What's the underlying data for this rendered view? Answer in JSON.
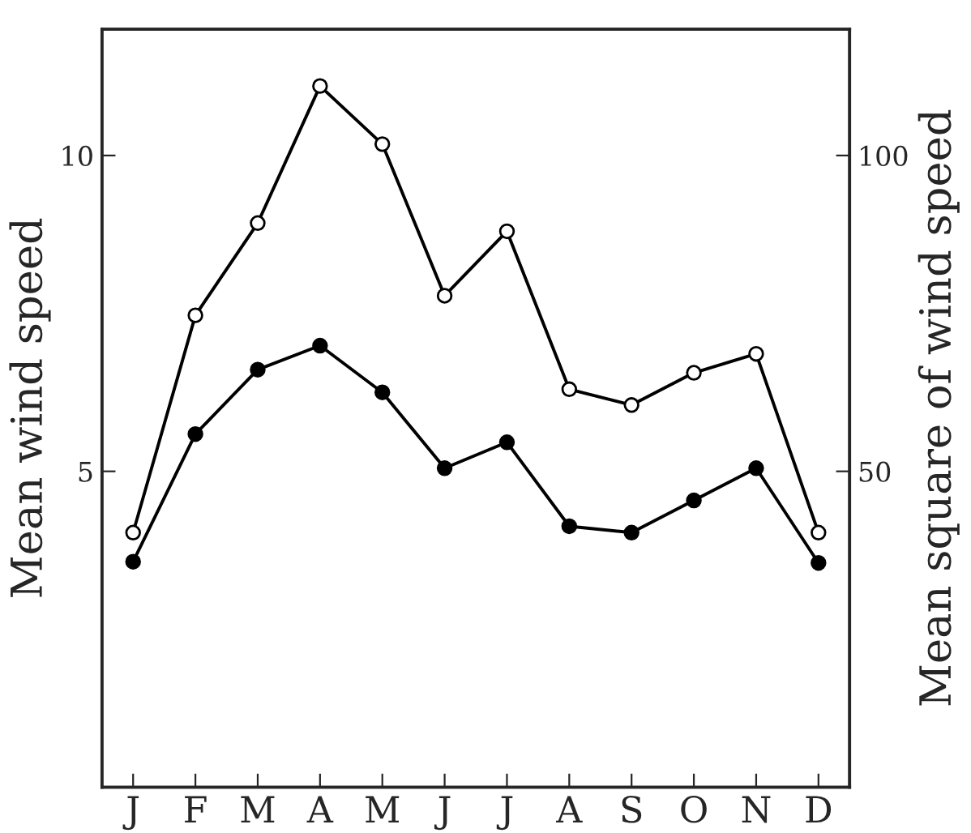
{
  "chart_data": {
    "type": "line",
    "ylabel": "Mean wind speed",
    "y2label": "Mean square of wind speed",
    "categories": [
      "J",
      "F",
      "M",
      "A",
      "M",
      "J",
      "J",
      "A",
      "S",
      "O",
      "N",
      "D"
    ],
    "series": [
      {
        "color": "#000000",
        "values": [
          3.57,
          5.59,
          6.61,
          6.99,
          6.25,
          5.05,
          5.46,
          4.13,
          4.03,
          4.54,
          5.05,
          3.55
        ]
      },
      {
        "color": "#000000",
        "axis": "y2",
        "values": [
          40.3,
          74.7,
          89.3,
          111,
          101.8,
          77.8,
          88,
          63,
          60.5,
          65.6,
          68.6,
          40.3
        ]
      }
    ],
    "ylim": [
      0,
      12
    ],
    "yticks": [
      5,
      10
    ],
    "y2lim": [
      0,
      120
    ],
    "y2ticks": [
      50,
      100
    ],
    "marker": "circle",
    "line_style": "solid",
    "grid": false,
    "legend": false
  }
}
